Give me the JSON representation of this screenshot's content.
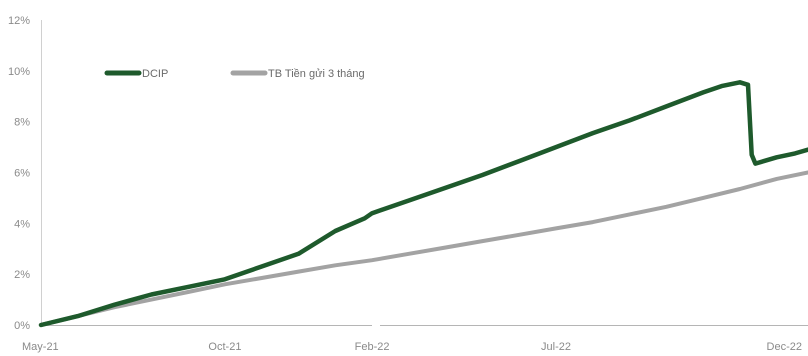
{
  "chart_data": {
    "type": "line",
    "title": "",
    "xlabel": "",
    "ylabel": "",
    "x_tick_labels": [
      "May-21",
      "Oct-21",
      "Feb-22",
      "Jul-22",
      "Dec-22"
    ],
    "y_tick_labels": [
      "0%",
      "2%",
      "4%",
      "6%",
      "8%",
      "10%",
      "12%"
    ],
    "ylim": [
      0,
      12
    ],
    "grid": false,
    "legend_position": "top-left",
    "x_ticks_months": [
      0,
      5,
      9,
      14,
      19
    ],
    "series": [
      {
        "name": "DCIP",
        "color": "#1e5a2c",
        "points": [
          [
            0,
            0
          ],
          [
            1,
            0.35
          ],
          [
            2,
            0.8
          ],
          [
            3,
            1.2
          ],
          [
            4,
            1.5
          ],
          [
            5,
            1.8
          ],
          [
            6,
            2.3
          ],
          [
            7,
            2.8
          ],
          [
            8,
            3.7
          ],
          [
            8.8,
            4.2
          ],
          [
            9,
            4.4
          ],
          [
            10,
            4.9
          ],
          [
            11,
            5.4
          ],
          [
            12,
            5.9
          ],
          [
            13,
            6.45
          ],
          [
            14,
            7.0
          ],
          [
            15,
            7.55
          ],
          [
            16,
            8.05
          ],
          [
            17,
            8.6
          ],
          [
            18,
            9.15
          ],
          [
            18.5,
            9.4
          ],
          [
            19,
            9.55
          ],
          [
            19.22,
            9.45
          ],
          [
            19.32,
            6.7
          ],
          [
            19.42,
            6.35
          ],
          [
            20,
            6.6
          ],
          [
            20.5,
            6.75
          ],
          [
            20.85,
            6.9
          ]
        ]
      },
      {
        "name": "TB Tiền gửi 3 tháng",
        "color": "#a3a3a3",
        "points": [
          [
            0,
            0
          ],
          [
            1,
            0.35
          ],
          [
            2,
            0.7
          ],
          [
            3,
            1.0
          ],
          [
            4,
            1.3
          ],
          [
            5,
            1.6
          ],
          [
            6,
            1.85
          ],
          [
            7,
            2.1
          ],
          [
            8,
            2.35
          ],
          [
            9,
            2.55
          ],
          [
            10,
            2.8
          ],
          [
            11,
            3.05
          ],
          [
            12,
            3.3
          ],
          [
            13,
            3.55
          ],
          [
            14,
            3.8
          ],
          [
            15,
            4.05
          ],
          [
            16,
            4.35
          ],
          [
            17,
            4.65
          ],
          [
            18,
            5.0
          ],
          [
            19,
            5.35
          ],
          [
            20,
            5.75
          ],
          [
            20.85,
            6.0
          ]
        ]
      }
    ]
  }
}
